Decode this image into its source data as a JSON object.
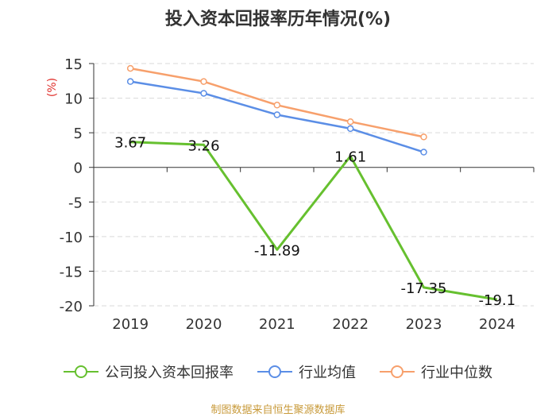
{
  "chart_data": {
    "type": "line",
    "title": "投入资本回报率历年情况(%)",
    "ylabel": "(%)",
    "categories": [
      "2019",
      "2020",
      "2021",
      "2022",
      "2023",
      "2024"
    ],
    "ylim": [
      -20,
      15
    ],
    "yticks": [
      15,
      10,
      5,
      0,
      -5,
      -10,
      -15,
      -20
    ],
    "series": [
      {
        "name": "公司投入资本回报率",
        "color": "#66c02f",
        "values": [
          3.67,
          3.26,
          -11.89,
          1.61,
          -17.35,
          -19.1
        ],
        "labels": [
          "3.67",
          "3.26",
          "-11.89",
          "1.61",
          "-17.35",
          "-19.1"
        ]
      },
      {
        "name": "行业均值",
        "color": "#5b8ee6",
        "values": [
          12.4,
          10.7,
          7.6,
          5.6,
          2.2,
          null
        ]
      },
      {
        "name": "行业中位数",
        "color": "#f7a06c",
        "values": [
          14.3,
          12.4,
          9.0,
          6.6,
          4.4,
          null
        ]
      }
    ],
    "legend_position": "bottom"
  },
  "footer": "制图数据来自恒生聚源数据库"
}
